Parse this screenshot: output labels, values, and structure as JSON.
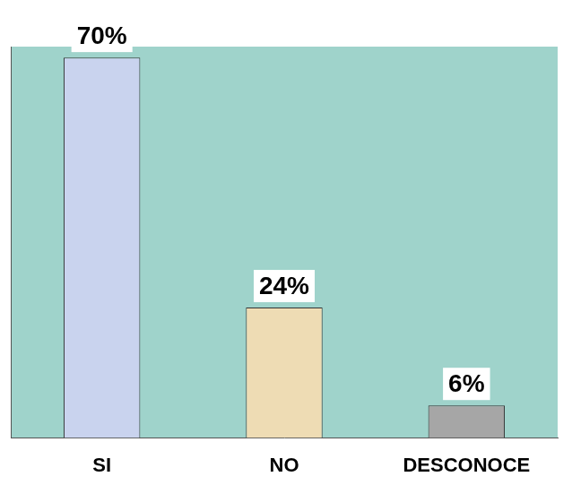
{
  "chart_data": {
    "type": "bar",
    "categories": [
      "SI",
      "NO",
      "DESCONOCE"
    ],
    "values": [
      70,
      24,
      6
    ],
    "value_labels": [
      "70%",
      "24%",
      "6%"
    ],
    "colors": [
      "#c9d3ee",
      "#eedcb4",
      "#a6a6a6"
    ],
    "ylim": [
      0,
      72
    ],
    "grid": false,
    "data_labels": true,
    "tick_labels": "x"
  }
}
